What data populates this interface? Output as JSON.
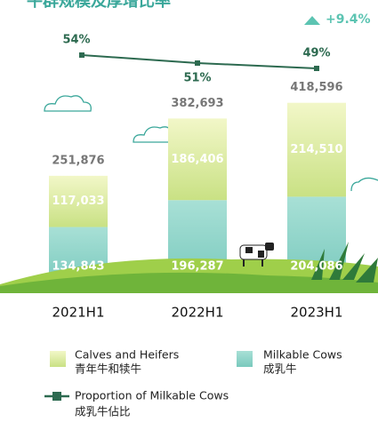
{
  "chart_data": {
    "type": "stacked-bar-line",
    "title": "牛群规模及厚增比率",
    "annotation": "+9.4%",
    "categories": [
      "2021H1",
      "2022H1",
      "2023H1"
    ],
    "series": [
      {
        "name": "Milkable Cows",
        "name_local": "成乳牛",
        "color": "#8fd6cb",
        "values": [
          134843,
          196287,
          204086
        ],
        "value_labels": [
          "134,843",
          "196,287",
          "204,086"
        ]
      },
      {
        "name": "Calves and Heifers",
        "name_local": "青年牛和犊牛",
        "color": "#d3e690",
        "values": [
          117033,
          186406,
          214510
        ],
        "value_labels": [
          "117,033",
          "186,406",
          "214,510"
        ]
      },
      {
        "name": "Proportion of Milkable Cows",
        "name_local": "成乳牛佔比",
        "color": "#2d6a50",
        "axis": "y2",
        "values": [
          54,
          51,
          49
        ],
        "value_labels": [
          "54%",
          "51%",
          "49%"
        ]
      }
    ],
    "totals": {
      "values": [
        251876,
        382693,
        418596
      ],
      "value_labels": [
        "251,876",
        "382,693",
        "418,596"
      ]
    },
    "ylim": [
      0,
      420000
    ],
    "y2lim": [
      40,
      60
    ]
  }
}
